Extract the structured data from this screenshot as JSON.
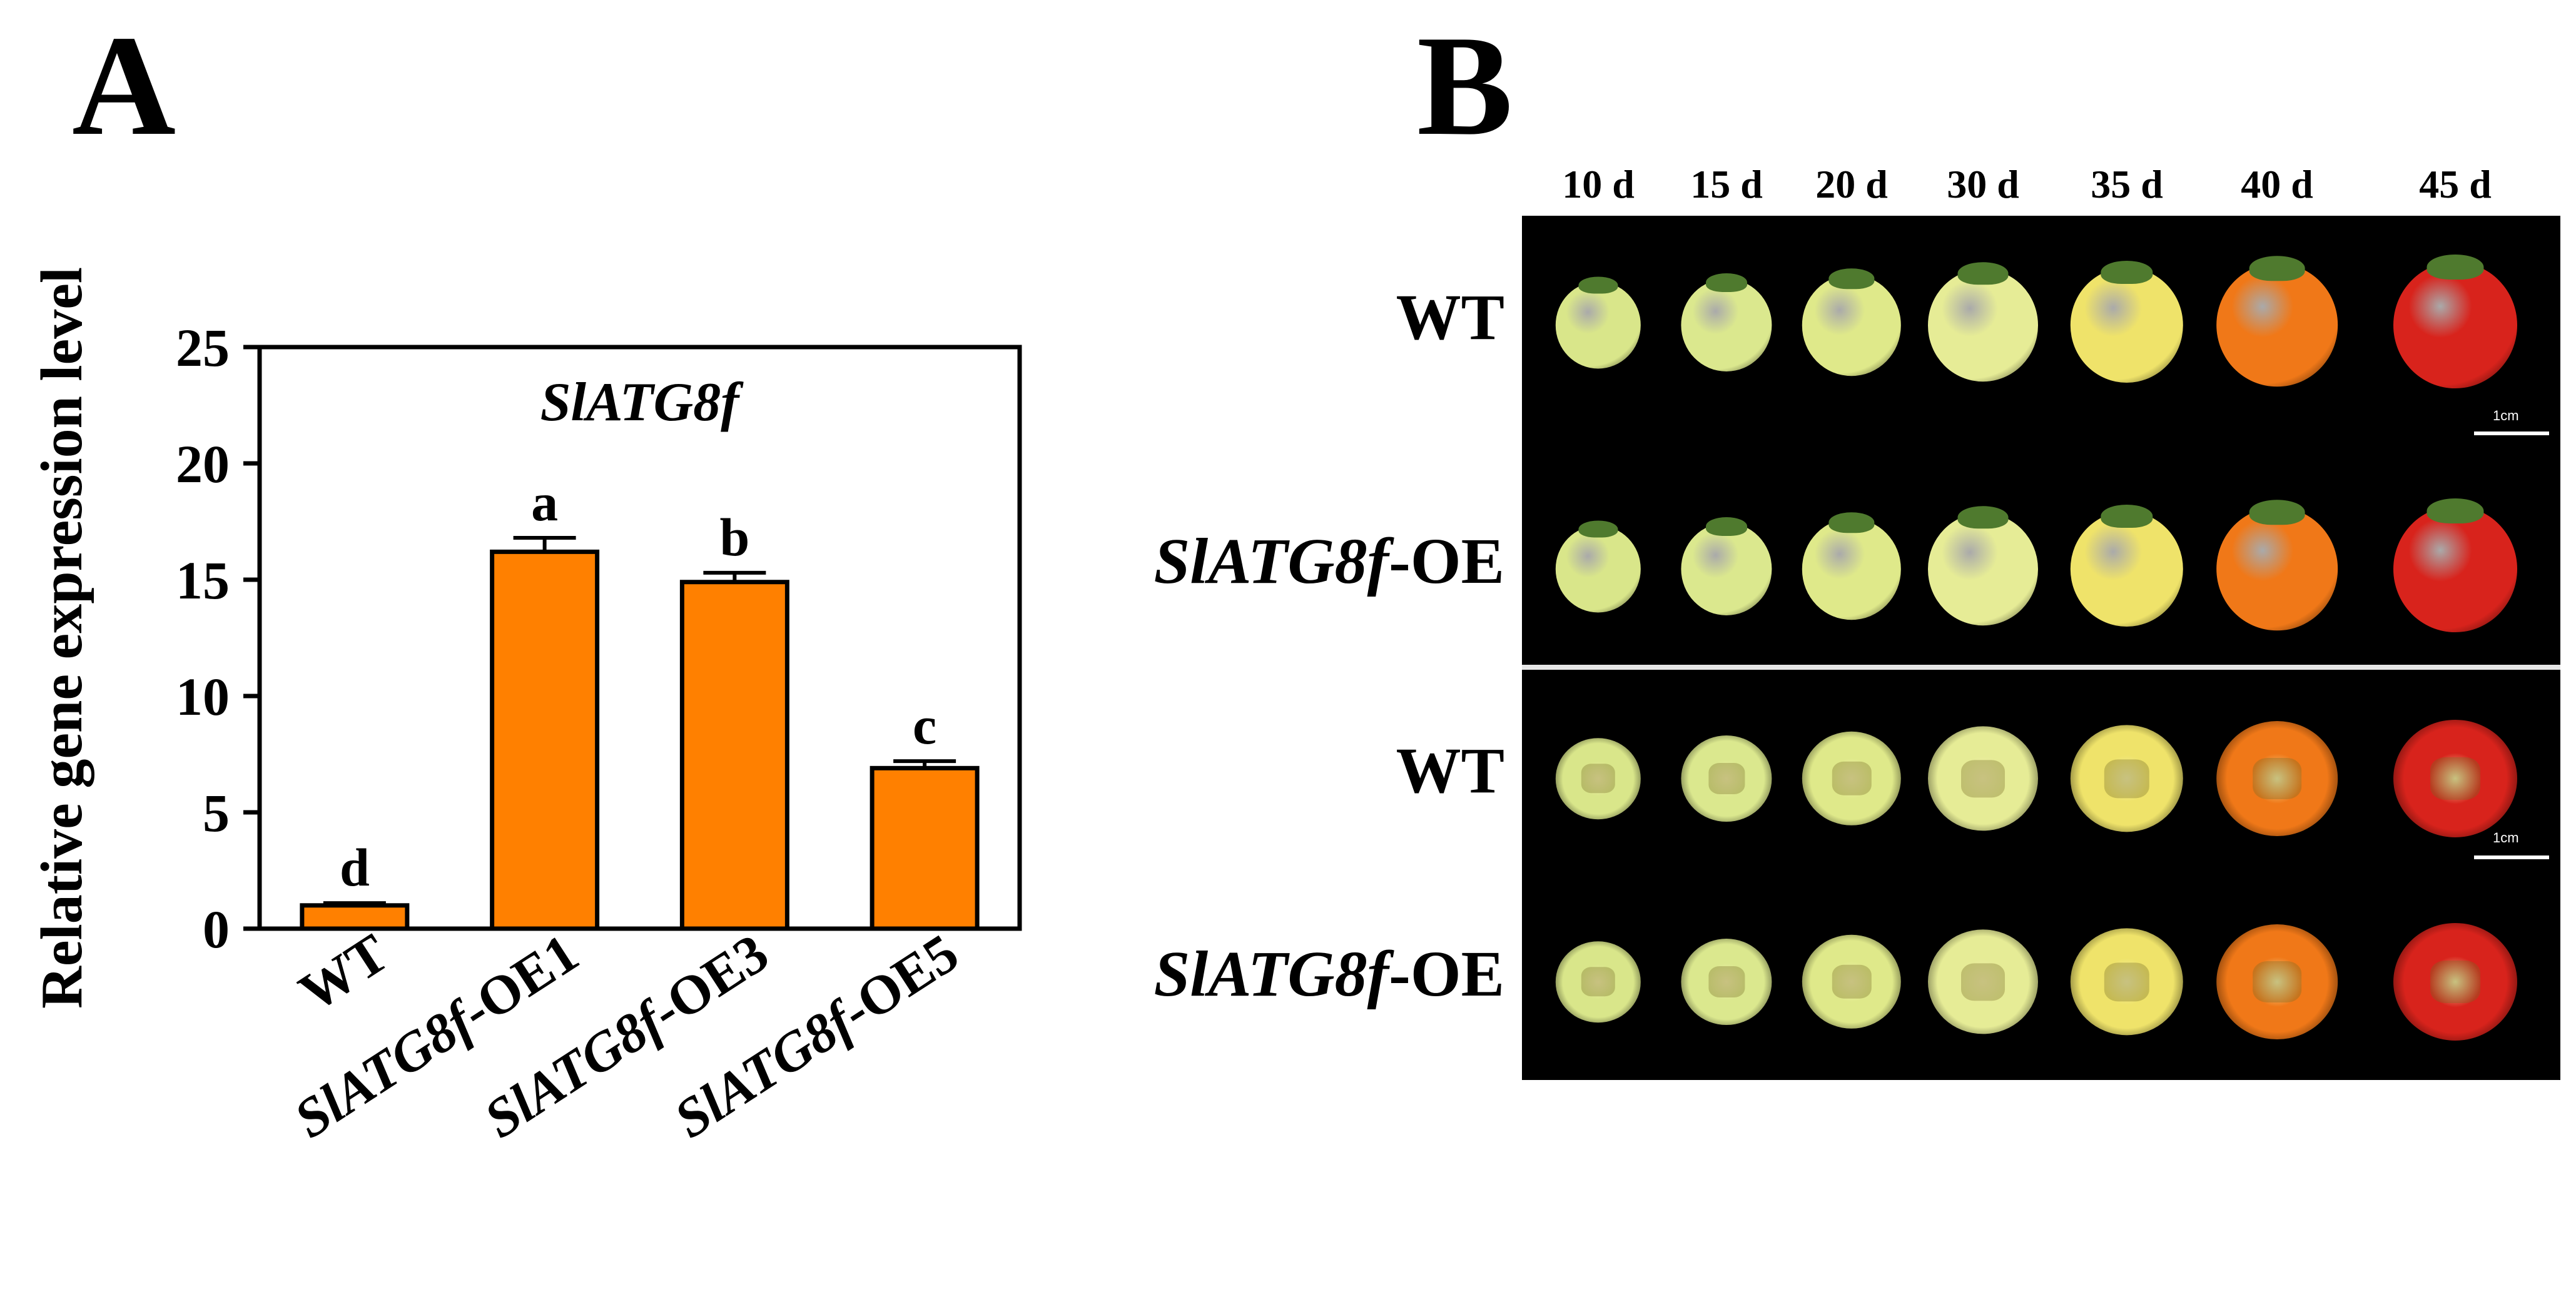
{
  "panel_a_letter": "A",
  "panel_b_letter": "B",
  "chart_data": {
    "type": "bar",
    "title": "SlATG8f",
    "xlabel": "",
    "ylabel": "Relative gene expression level",
    "ylim": [
      0,
      25
    ],
    "yticks": [
      "0",
      "5",
      "10",
      "15",
      "20",
      "25"
    ],
    "categories": [
      "WT",
      "SlATG8f-OE1",
      "SlATG8f-OE3",
      "SlATG8f-OE5"
    ],
    "category_gene_part": [
      "",
      "SlATG8f",
      "SlATG8f",
      "SlATG8f"
    ],
    "category_suffix": [
      "WT",
      "-OE1",
      "-OE3",
      "-OE5"
    ],
    "values": [
      1.0,
      16.2,
      14.9,
      6.9
    ],
    "errors": [
      0.1,
      0.6,
      0.4,
      0.3
    ],
    "significance_letters": [
      "d",
      "a",
      "b",
      "c"
    ],
    "bar_color": "#ff8000",
    "grid": false
  },
  "photo_panel": {
    "day_labels": [
      "10 d",
      "15 d",
      "20 d",
      "30 d",
      "35 d",
      "40 d",
      "45 d"
    ],
    "rows": [
      {
        "label_gene": "",
        "label_suffix": "WT",
        "type": "whole"
      },
      {
        "label_gene": "SlATG8f",
        "label_suffix": "-OE",
        "type": "whole"
      },
      {
        "label_gene": "",
        "label_suffix": "WT",
        "type": "section"
      },
      {
        "label_gene": "SlATG8f",
        "label_suffix": "-OE",
        "type": "section"
      }
    ],
    "scale_bar_label": "1cm",
    "fruit_colors": [
      "#d9e68a",
      "#dbe88e",
      "#dfe98a",
      "#e6ec96",
      "#efe36a",
      "#f07818",
      "#d8231c"
    ],
    "fruit_sizes": [
      0.62,
      0.66,
      0.72,
      0.8,
      0.82,
      0.88,
      0.9
    ]
  }
}
